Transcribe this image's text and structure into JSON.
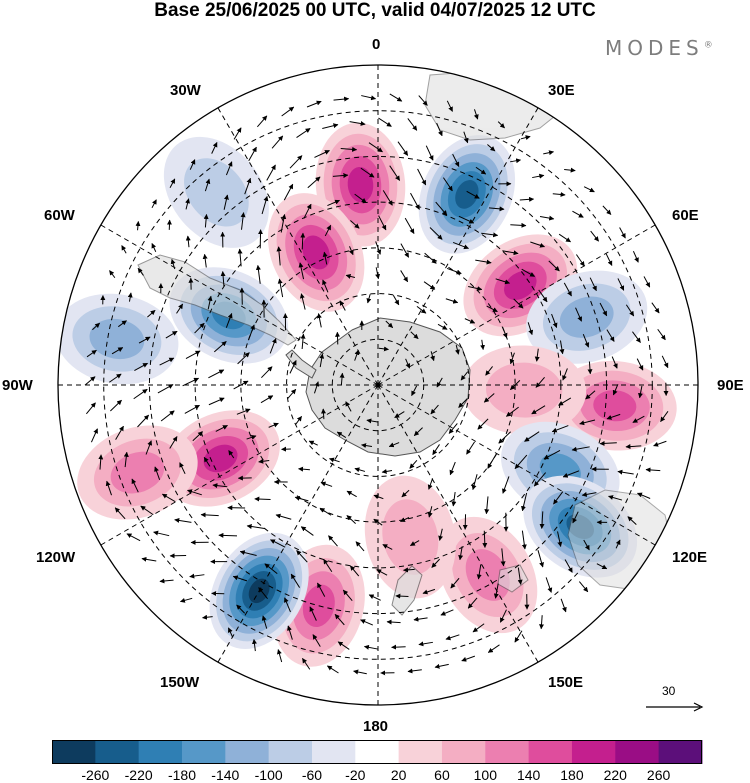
{
  "title": "Base 25/06/2025 00 UTC, valid 04/07/2025 12 UTC",
  "brand": {
    "name": "MODES",
    "mark": "®"
  },
  "longitude_labels": {
    "lon_0": "0",
    "lon_30e": "30E",
    "lon_60e": "60E",
    "lon_90e": "90E",
    "lon_120e": "120E",
    "lon_150e": "150E",
    "lon_180": "180",
    "lon_150w": "150W",
    "lon_120w": "120W",
    "lon_90w": "90W",
    "lon_60w": "60W",
    "lon_30w": "30W"
  },
  "reference_vector": {
    "label": "30"
  },
  "colorbar": {
    "ticks": [
      "-260",
      "-220",
      "-180",
      "-140",
      "-100",
      "-60",
      "-20",
      "20",
      "60",
      "100",
      "140",
      "180",
      "220",
      "260"
    ],
    "colors": [
      "#0d3b5e",
      "#175d8c",
      "#2f7fb4",
      "#5698c8",
      "#8fb1d8",
      "#bccde6",
      "#e2e5f2",
      "#ffffff",
      "#f8d2d9",
      "#f4aec3",
      "#ec7fb0",
      "#df4d9d",
      "#c41f8e",
      "#9a0d85",
      "#5c0f7a"
    ]
  },
  "map_colors": {
    "land": "#dcdcdc",
    "coast": "#555555",
    "grid": "#000000"
  },
  "anomaly_centers": [
    {
      "lon": -5,
      "colat": 44,
      "value": 200
    },
    {
      "lon": 25,
      "colat": 46,
      "value": -220
    },
    {
      "lon": 55,
      "colat": 38,
      "value": 190
    },
    {
      "lon": 72,
      "colat": 48,
      "value": -120
    },
    {
      "lon": 95,
      "colat": 52,
      "value": 170
    },
    {
      "lon": 92,
      "colat": 32,
      "value": 80
    },
    {
      "lon": 115,
      "colat": 44,
      "value": -150
    },
    {
      "lon": 125,
      "colat": 54,
      "value": -250
    },
    {
      "lon": 150,
      "colat": 48,
      "value": 120
    },
    {
      "lon": 168,
      "colat": 34,
      "value": 60
    },
    {
      "lon": -165,
      "colat": 50,
      "value": 160
    },
    {
      "lon": -150,
      "colat": 52,
      "value": -260
    },
    {
      "lon": -115,
      "colat": 38,
      "value": 200
    },
    {
      "lon": -110,
      "colat": 56,
      "value": 100
    },
    {
      "lon": -80,
      "colat": 58,
      "value": -100
    },
    {
      "lon": -65,
      "colat": 36,
      "value": -200
    },
    {
      "lon": -25,
      "colat": 32,
      "value": 190
    },
    {
      "lon": -40,
      "colat": 55,
      "value": -90
    }
  ]
}
